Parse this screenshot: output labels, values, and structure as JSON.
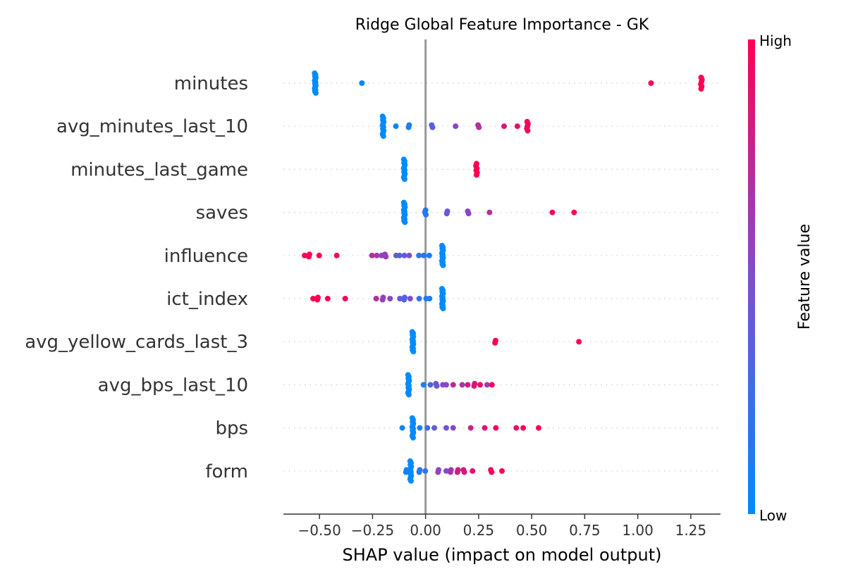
{
  "chart_data": {
    "type": "scatter",
    "title": "Ridge Global Feature Importance - GK",
    "xlabel": "SHAP value (impact on model output)",
    "xlim": [
      -0.67,
      1.39
    ],
    "xticks": [
      -0.5,
      -0.25,
      0.0,
      0.25,
      0.5,
      0.75,
      1.0,
      1.25
    ],
    "xtick_labels": [
      "−0.50",
      "−0.25",
      "0.00",
      "0.25",
      "0.50",
      "0.75",
      "1.00",
      "1.25"
    ],
    "colorbar": {
      "label": "Feature value",
      "high": "High",
      "low": "Low",
      "low_color": "#008bfb",
      "mid_color": "#7e4ecf",
      "high_color": "#ff0052"
    },
    "zero_line": true,
    "features": [
      {
        "name": "minutes",
        "points": [
          {
            "x": -0.52,
            "v": 0,
            "n": 14
          },
          {
            "x": -0.3,
            "v": 0.02,
            "n": 1
          },
          {
            "x": 1.06,
            "v": 1,
            "n": 1
          },
          {
            "x": 1.3,
            "v": 1,
            "n": 6
          }
        ]
      },
      {
        "name": "avg_minutes_last_10",
        "points": [
          {
            "x": -0.2,
            "v": 0,
            "n": 12
          },
          {
            "x": -0.14,
            "v": 0.05,
            "n": 1
          },
          {
            "x": -0.08,
            "v": 0.1,
            "n": 2
          },
          {
            "x": 0.03,
            "v": 0.35,
            "n": 2
          },
          {
            "x": 0.14,
            "v": 0.55,
            "n": 1
          },
          {
            "x": 0.25,
            "v": 0.7,
            "n": 2
          },
          {
            "x": 0.37,
            "v": 0.85,
            "n": 1
          },
          {
            "x": 0.43,
            "v": 0.9,
            "n": 1
          },
          {
            "x": 0.48,
            "v": 0.95,
            "n": 5
          }
        ]
      },
      {
        "name": "minutes_last_game",
        "points": [
          {
            "x": -0.1,
            "v": 0,
            "n": 12
          },
          {
            "x": 0.24,
            "v": 1,
            "n": 6
          }
        ]
      },
      {
        "name": "saves",
        "points": [
          {
            "x": -0.1,
            "v": 0,
            "n": 14
          },
          {
            "x": 0.0,
            "v": 0.15,
            "n": 3
          },
          {
            "x": 0.1,
            "v": 0.4,
            "n": 2
          },
          {
            "x": 0.2,
            "v": 0.55,
            "n": 2
          },
          {
            "x": 0.3,
            "v": 0.7,
            "n": 1
          },
          {
            "x": 0.6,
            "v": 0.95,
            "n": 1
          },
          {
            "x": 0.7,
            "v": 1,
            "n": 1
          }
        ]
      },
      {
        "name": "influence",
        "points": [
          {
            "x": 0.08,
            "v": 0,
            "n": 14
          },
          {
            "x": -0.57,
            "v": 1,
            "n": 1
          },
          {
            "x": -0.55,
            "v": 1,
            "n": 2
          },
          {
            "x": -0.5,
            "v": 1,
            "n": 1
          },
          {
            "x": -0.42,
            "v": 0.95,
            "n": 1
          },
          {
            "x": -0.25,
            "v": 0.7,
            "n": 1
          },
          {
            "x": -0.23,
            "v": 0.65,
            "n": 1
          },
          {
            "x": -0.21,
            "v": 0.55,
            "n": 1
          },
          {
            "x": -0.19,
            "v": 0.6,
            "n": 2
          },
          {
            "x": -0.14,
            "v": 0.4,
            "n": 1
          },
          {
            "x": -0.12,
            "v": 0.35,
            "n": 1
          },
          {
            "x": -0.1,
            "v": 0.35,
            "n": 1
          },
          {
            "x": -0.08,
            "v": 0.5,
            "n": 1
          },
          {
            "x": -0.03,
            "v": 0.2,
            "n": 1
          },
          {
            "x": -0.01,
            "v": 0.15,
            "n": 1
          },
          {
            "x": 0.02,
            "v": 0.1,
            "n": 1
          }
        ]
      },
      {
        "name": "ict_index",
        "points": [
          {
            "x": 0.08,
            "v": 0,
            "n": 14
          },
          {
            "x": -0.53,
            "v": 1,
            "n": 1
          },
          {
            "x": -0.51,
            "v": 1,
            "n": 2
          },
          {
            "x": -0.46,
            "v": 1,
            "n": 1
          },
          {
            "x": -0.38,
            "v": 0.95,
            "n": 1
          },
          {
            "x": -0.23,
            "v": 0.7,
            "n": 1
          },
          {
            "x": -0.2,
            "v": 0.6,
            "n": 2
          },
          {
            "x": -0.17,
            "v": 0.55,
            "n": 1
          },
          {
            "x": -0.12,
            "v": 0.4,
            "n": 1
          },
          {
            "x": -0.1,
            "v": 0.35,
            "n": 2
          },
          {
            "x": -0.07,
            "v": 0.5,
            "n": 1
          },
          {
            "x": -0.03,
            "v": 0.2,
            "n": 1
          },
          {
            "x": 0.0,
            "v": 0.15,
            "n": 1
          },
          {
            "x": 0.02,
            "v": 0.1,
            "n": 1
          }
        ]
      },
      {
        "name": "avg_yellow_cards_last_3",
        "points": [
          {
            "x": -0.06,
            "v": 0,
            "n": 14
          },
          {
            "x": 0.33,
            "v": 1,
            "n": 2
          },
          {
            "x": 0.72,
            "v": 1,
            "n": 1
          }
        ]
      },
      {
        "name": "avg_bps_last_10",
        "points": [
          {
            "x": -0.08,
            "v": 0,
            "n": 12
          },
          {
            "x": -0.01,
            "v": 0.1,
            "n": 1
          },
          {
            "x": 0.02,
            "v": 0.3,
            "n": 1
          },
          {
            "x": 0.05,
            "v": 0.45,
            "n": 2
          },
          {
            "x": 0.08,
            "v": 0.5,
            "n": 1
          },
          {
            "x": 0.1,
            "v": 0.55,
            "n": 1
          },
          {
            "x": 0.13,
            "v": 0.75,
            "n": 1
          },
          {
            "x": 0.17,
            "v": 0.65,
            "n": 1
          },
          {
            "x": 0.2,
            "v": 0.8,
            "n": 1
          },
          {
            "x": 0.23,
            "v": 0.85,
            "n": 2
          },
          {
            "x": 0.26,
            "v": 0.9,
            "n": 1
          },
          {
            "x": 0.29,
            "v": 0.6,
            "n": 1
          },
          {
            "x": 0.31,
            "v": 0.95,
            "n": 1
          }
        ]
      },
      {
        "name": "bps",
        "points": [
          {
            "x": -0.06,
            "v": 0,
            "n": 12
          },
          {
            "x": -0.11,
            "v": 0.05,
            "n": 1
          },
          {
            "x": -0.03,
            "v": 0.1,
            "n": 1
          },
          {
            "x": 0.01,
            "v": 0.25,
            "n": 1
          },
          {
            "x": 0.04,
            "v": 0.4,
            "n": 1
          },
          {
            "x": 0.1,
            "v": 0.45,
            "n": 1
          },
          {
            "x": 0.13,
            "v": 0.55,
            "n": 1
          },
          {
            "x": 0.21,
            "v": 0.75,
            "n": 1
          },
          {
            "x": 0.28,
            "v": 0.85,
            "n": 1
          },
          {
            "x": 0.33,
            "v": 0.95,
            "n": 1
          },
          {
            "x": 0.43,
            "v": 0.9,
            "n": 1
          },
          {
            "x": 0.46,
            "v": 1,
            "n": 1
          },
          {
            "x": 0.53,
            "v": 1,
            "n": 1
          }
        ]
      },
      {
        "name": "form",
        "points": [
          {
            "x": -0.07,
            "v": 0,
            "n": 12
          },
          {
            "x": -0.09,
            "v": 0.05,
            "n": 2
          },
          {
            "x": -0.03,
            "v": 0.15,
            "n": 2
          },
          {
            "x": 0.0,
            "v": 0.2,
            "n": 1
          },
          {
            "x": 0.06,
            "v": 0.55,
            "n": 2
          },
          {
            "x": 0.1,
            "v": 0.5,
            "n": 1
          },
          {
            "x": 0.12,
            "v": 0.65,
            "n": 2
          },
          {
            "x": 0.15,
            "v": 0.8,
            "n": 2
          },
          {
            "x": 0.18,
            "v": 0.85,
            "n": 2
          },
          {
            "x": 0.22,
            "v": 0.9,
            "n": 1
          },
          {
            "x": 0.31,
            "v": 0.95,
            "n": 2
          },
          {
            "x": 0.36,
            "v": 1,
            "n": 1
          }
        ]
      }
    ]
  }
}
